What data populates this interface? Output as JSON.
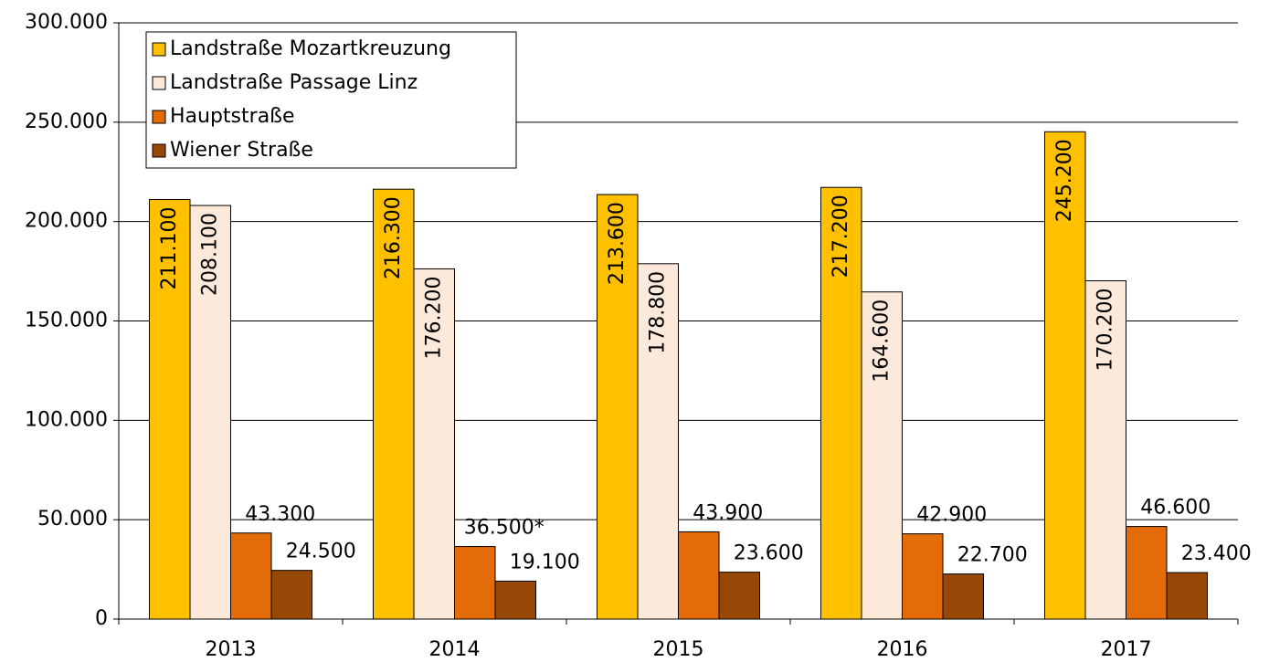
{
  "chart_data": {
    "type": "bar",
    "categories": [
      "2013",
      "2014",
      "2015",
      "2016",
      "2017"
    ],
    "series": [
      {
        "name": "Landstraße Mozartkreuzung",
        "color": "#ffc000",
        "values": [
          211100,
          216300,
          213600,
          217200,
          245200
        ],
        "value_labels": [
          "211.100",
          "216.300",
          "213.600",
          "217.200",
          "245.200"
        ]
      },
      {
        "name": "Landstraße Passage Linz",
        "color": "#fde9d9",
        "values": [
          208100,
          176200,
          178800,
          164600,
          170200
        ],
        "value_labels": [
          "208.100",
          "176.200",
          "178.800",
          "164.600",
          "170.200"
        ]
      },
      {
        "name": "Hauptstraße",
        "color": "#e36c09",
        "values": [
          43300,
          36500,
          43900,
          42900,
          46600
        ],
        "value_labels": [
          "43.300",
          "36.500*",
          "43.900",
          "42.900",
          "46.600"
        ]
      },
      {
        "name": "Wiener Straße",
        "color": "#974806",
        "values": [
          24500,
          19100,
          23600,
          22700,
          23400
        ],
        "value_labels": [
          "24.500",
          "19.100",
          "23.600",
          "22.700",
          "23.400"
        ]
      }
    ],
    "ylim": [
      0,
      300000
    ],
    "yticks": [
      0,
      {
        "value": 50000,
        "label": "50.000"
      },
      {
        "value": 100000,
        "label": "100.000"
      },
      {
        "value": 150000,
        "label": "150.000"
      },
      {
        "value": 200000,
        "label": "200.000"
      },
      {
        "value": 250000,
        "label": "250.000"
      },
      {
        "value": 300000,
        "label": "300.000"
      }
    ],
    "grid": true,
    "legend": "upper left"
  }
}
